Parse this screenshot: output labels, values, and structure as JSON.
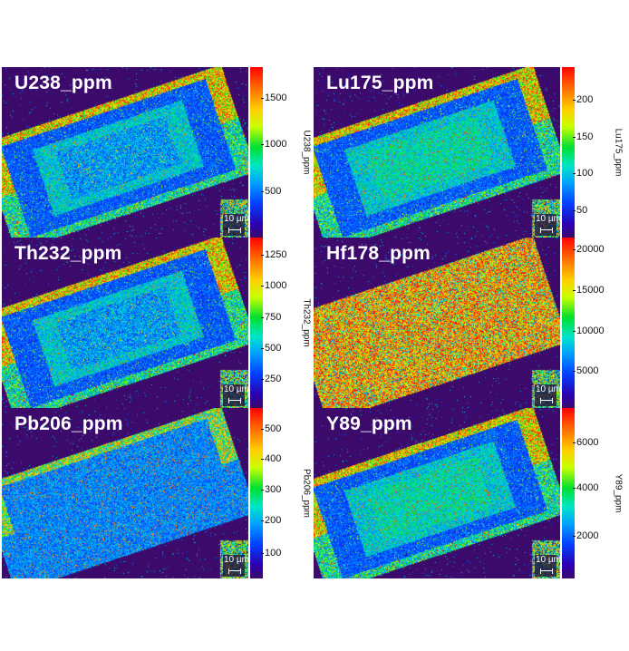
{
  "panels": [
    {
      "title": "U238_ppm",
      "colorbar_label": "U238_ppm",
      "ticks": [
        "1500",
        "1000",
        "500"
      ],
      "tick_fractions": [
        0.82,
        0.55,
        0.27
      ],
      "scale": "10 µm",
      "pattern": "zoned"
    },
    {
      "title": "Lu175_ppm",
      "colorbar_label": "Lu175_ppm",
      "ticks": [
        "200",
        "150",
        "100",
        "50"
      ],
      "tick_fractions": [
        0.81,
        0.59,
        0.38,
        0.16
      ],
      "scale": "10 µm",
      "pattern": "zoned_core"
    },
    {
      "title": "Th232_ppm",
      "colorbar_label": "Th232_ppm",
      "ticks": [
        "1250",
        "1000",
        "750",
        "500",
        "250"
      ],
      "tick_fractions": [
        0.9,
        0.72,
        0.53,
        0.35,
        0.17
      ],
      "scale": "10 µm",
      "pattern": "zoned"
    },
    {
      "title": "Hf178_ppm",
      "colorbar_label": "",
      "ticks": [
        "20000",
        "15000",
        "10000",
        "5000"
      ],
      "tick_fractions": [
        0.93,
        0.69,
        0.45,
        0.22
      ],
      "scale": "10 µm",
      "pattern": "uniform_high"
    },
    {
      "title": "Pb206_ppm",
      "colorbar_label": "Pb206_ppm",
      "ticks": [
        "500",
        "400",
        "300",
        "200",
        "100"
      ],
      "tick_fractions": [
        0.88,
        0.7,
        0.52,
        0.34,
        0.15
      ],
      "scale": "10 µm",
      "pattern": "low"
    },
    {
      "title": "Y89_ppm",
      "colorbar_label": "Y89_ppm",
      "ticks": [
        "6000",
        "4000",
        "2000"
      ],
      "tick_fractions": [
        0.8,
        0.53,
        0.25
      ],
      "scale": "10 µm",
      "pattern": "zoned_core"
    }
  ],
  "colors": {
    "background": "#3b0a6b",
    "low": "#2a1aa0",
    "high": "#ff2000"
  }
}
